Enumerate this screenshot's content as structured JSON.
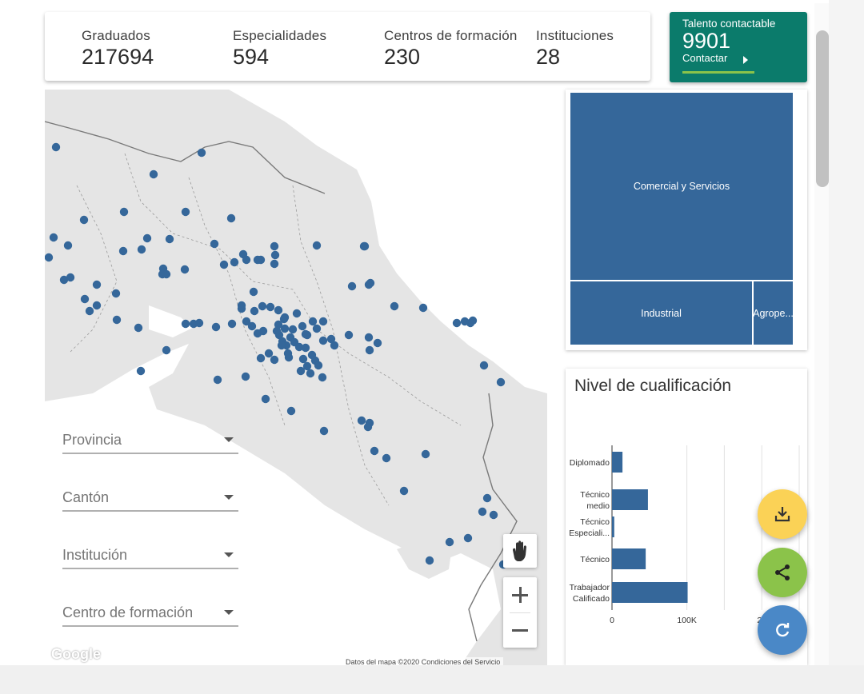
{
  "header": {
    "stats": [
      {
        "label": "Graduados",
        "value": "217694"
      },
      {
        "label": "Especialidades",
        "value": "594"
      },
      {
        "label": "Centros de formación",
        "value": "230"
      },
      {
        "label": "Instituciones",
        "value": "28"
      }
    ],
    "talent": {
      "label": "Talento contactable",
      "value": "9901",
      "button": "Contactar"
    }
  },
  "filters": [
    {
      "label": "Provincia"
    },
    {
      "label": "Cantón"
    },
    {
      "label": "Institución"
    },
    {
      "label": "Centro de formación"
    }
  ],
  "map": {
    "google_logo": "Google",
    "attribution": "Datos del mapa ©2020    Condiciones del Servicio",
    "marker_color": "#35679a"
  },
  "treemap": {
    "color": "#35679a",
    "items": [
      {
        "label": "Comercial y Servicios"
      },
      {
        "label": "Industrial"
      },
      {
        "label": "Agrope..."
      }
    ]
  },
  "chart_data": {
    "type": "bar",
    "orientation": "horizontal",
    "title": "Nivel de cualificación",
    "categories": [
      "Diplomado",
      "Técnico medio",
      "Técnico Especiali...",
      "Técnico",
      "Trabajador Calificado"
    ],
    "values": [
      14000,
      48000,
      3000,
      45000,
      101000
    ],
    "xlim": [
      0,
      250000
    ],
    "xticks": [
      "0",
      "100K",
      "20"
    ],
    "grid": true,
    "color": "#35679a"
  },
  "fabs": {
    "download_color": "#fbd256",
    "share_color": "#8bc34a",
    "refresh_color": "#4a88c7"
  }
}
